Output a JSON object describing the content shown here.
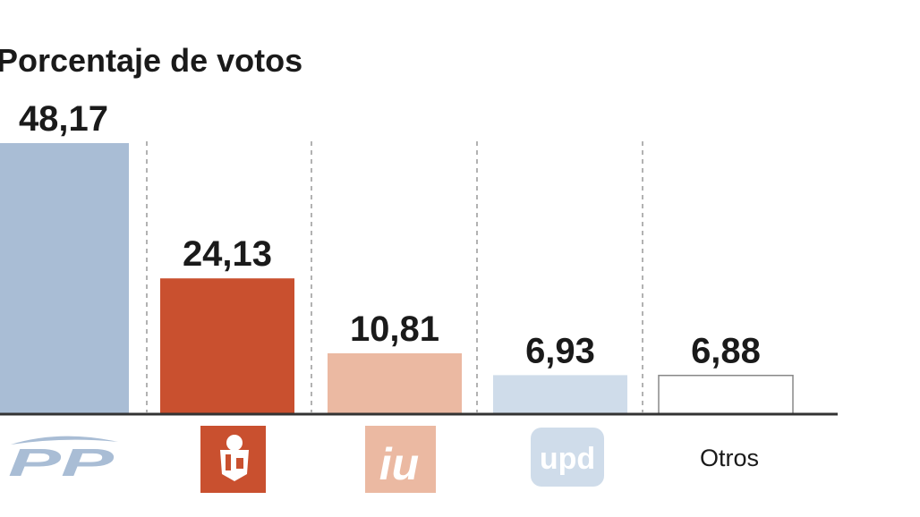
{
  "chart_data": {
    "type": "bar",
    "title": "Porcentaje de votos",
    "categories": [
      "PP",
      "PSOE",
      "IU",
      "UPyD",
      "Otros"
    ],
    "values": [
      48.17,
      24.13,
      10.81,
      6.93,
      6.88
    ],
    "value_labels": [
      "48,17",
      "24,13",
      "10,81",
      "6,93",
      "6,88"
    ],
    "category_labels": {
      "otros": "Otros"
    },
    "logo_text": {
      "pp": "PP",
      "iu": "iu",
      "upd": "upd"
    },
    "ylim": [
      0,
      50
    ],
    "grid": false,
    "legend": "none",
    "colors": {
      "pp": "#a9bdd5",
      "psoe": "#c9502f",
      "iu": "#ebb9a2",
      "upd": "#cfdcea",
      "otros": "#ffffff",
      "otros_border": "#888888",
      "axis": "#333333",
      "separator": "#999999"
    },
    "icons": {
      "pp": "pp-logo-icon",
      "psoe": "psoe-rose-logo-icon",
      "iu": "iu-logo-icon",
      "upd": "upd-logo-icon"
    }
  }
}
